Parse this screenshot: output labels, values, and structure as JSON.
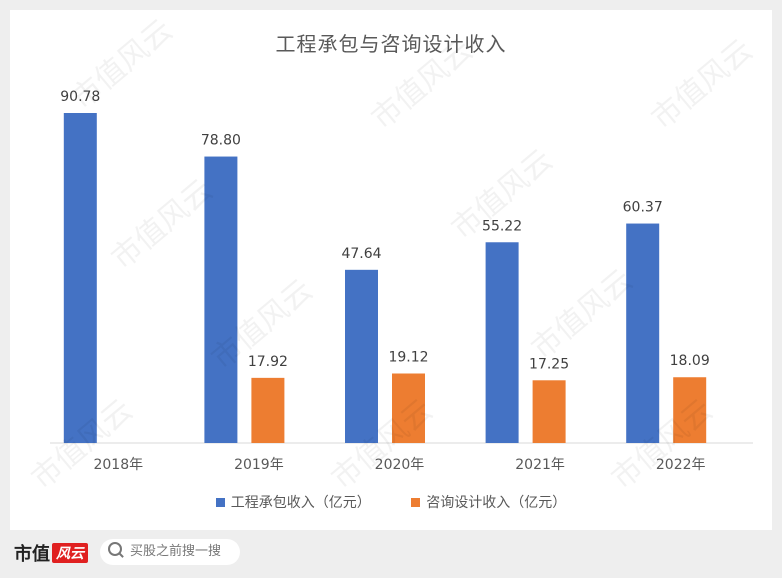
{
  "chart_data": {
    "type": "bar",
    "title": "工程承包与咨询设计收入",
    "categories": [
      "2018年",
      "2019年",
      "2020年",
      "2021年",
      "2022年"
    ],
    "series": [
      {
        "name": "工程承包收入（亿元）",
        "color": "#4472c4",
        "values": [
          90.78,
          78.8,
          47.64,
          55.22,
          60.37
        ]
      },
      {
        "name": "咨询设计收入（亿元）",
        "color": "#ed7d31",
        "values": [
          null,
          17.92,
          19.12,
          17.25,
          18.09
        ]
      }
    ],
    "value_labels": [
      [
        "90.78",
        "78.80",
        "47.64",
        "55.22",
        "60.37"
      ],
      [
        "",
        "17.92",
        "19.12",
        "17.25",
        "18.09"
      ]
    ],
    "ylim": [
      0,
      100
    ],
    "grid": false,
    "legend_position": "bottom"
  },
  "watermark": "市值风云",
  "footer": {
    "brand_text": "市值",
    "brand_logo_text": "风云",
    "search_placeholder": "买股之前搜一搜"
  }
}
